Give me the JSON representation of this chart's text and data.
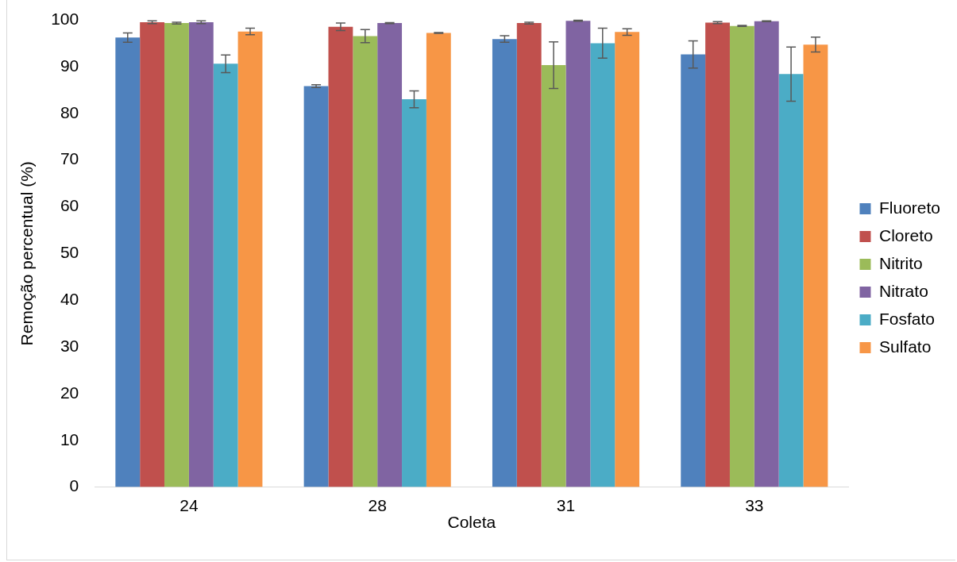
{
  "chart_data": {
    "type": "bar",
    "xlabel": "Coleta",
    "ylabel": "Remoção percentual (%)",
    "categories": [
      "24",
      "28",
      "31",
      "33"
    ],
    "series": [
      {
        "name": "Fluoreto",
        "color": "#4f81bd",
        "values": [
          96.2,
          85.8,
          95.9,
          92.6
        ],
        "errors": [
          1.0,
          0.3,
          0.7,
          2.9
        ]
      },
      {
        "name": "Cloreto",
        "color": "#c0504d",
        "values": [
          99.5,
          98.5,
          99.3,
          99.4
        ],
        "errors": [
          0.3,
          0.8,
          0.2,
          0.2
        ]
      },
      {
        "name": "Nitrito",
        "color": "#9bbb59",
        "values": [
          99.3,
          96.5,
          90.3,
          98.7
        ],
        "errors": [
          0.2,
          1.4,
          5.0,
          0.1
        ]
      },
      {
        "name": "Nitrato",
        "color": "#8064a2",
        "values": [
          99.5,
          99.3,
          99.8,
          99.7
        ],
        "errors": [
          0.3,
          0.1,
          0.1,
          0.1
        ]
      },
      {
        "name": "Fosfato",
        "color": "#4bacc6",
        "values": [
          90.6,
          83.0,
          95.0,
          88.4
        ],
        "errors": [
          1.9,
          1.8,
          3.2,
          5.8
        ]
      },
      {
        "name": "Sulfato",
        "color": "#f79646",
        "values": [
          97.5,
          97.2,
          97.4,
          94.7
        ],
        "errors": [
          0.7,
          0.1,
          0.7,
          1.6
        ]
      }
    ],
    "ylim": [
      0,
      100
    ],
    "yticks": [
      0,
      10,
      20,
      30,
      40,
      50,
      60,
      70,
      80,
      90,
      100
    ],
    "grid": false,
    "legend": "right"
  }
}
